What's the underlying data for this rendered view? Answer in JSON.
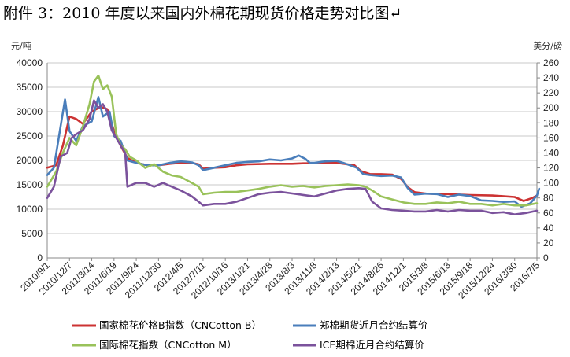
{
  "title": "附件 3：2010 年度以来国内外棉花期现货价格走势对比图↵",
  "chart_data": {
    "type": "line",
    "title": "附件 3：2010 年度以来国内外棉花期现货价格走势对比图",
    "y_left_unit": "元/吨",
    "y_right_unit": "美分/磅",
    "y_left_range": [
      0,
      40000
    ],
    "y_left_ticks": [
      "0",
      "5000",
      "10000",
      "15000",
      "20000",
      "25000",
      "30000",
      "35000",
      "40000"
    ],
    "y_right_range": [
      0,
      260
    ],
    "y_right_ticks": [
      "0",
      "20",
      "40",
      "60",
      "80",
      "100",
      "120",
      "140",
      "160",
      "180",
      "200",
      "220",
      "240",
      "260"
    ],
    "x_ticks": [
      "2010/9/1",
      "2010/12/7",
      "2011/3/14",
      "2011/6/19",
      "2011/9/24",
      "2011/12/30",
      "2012/4/5",
      "2012/7/11",
      "2012/10/16",
      "2013/1/21",
      "2013/4/28",
      "2013/8/3",
      "2013/11/8",
      "2014/2/13",
      "2014/5/21",
      "2014/8/26",
      "2014/12/1",
      "2015/3/8",
      "2015/6/13",
      "2015/9/18",
      "2015/12/24",
      "2016/3/30",
      "2016/7/5"
    ],
    "grid": true,
    "legend_position": "bottom",
    "series": [
      {
        "name": "国家棉花价格B指数（CNCotton B）",
        "axis": "left",
        "color": "#cc3333",
        "points": [
          [
            0,
            18500
          ],
          [
            0.4,
            19000
          ],
          [
            0.7,
            23000
          ],
          [
            1.0,
            29000
          ],
          [
            1.3,
            28500
          ],
          [
            1.6,
            27500
          ],
          [
            2.0,
            30000
          ],
          [
            2.4,
            31000
          ],
          [
            2.7,
            30500
          ],
          [
            3.0,
            26000
          ],
          [
            3.3,
            23000
          ],
          [
            3.6,
            20500
          ],
          [
            4.0,
            19500
          ],
          [
            4.5,
            19000
          ],
          [
            5.0,
            19000
          ],
          [
            5.5,
            19300
          ],
          [
            6.0,
            19500
          ],
          [
            6.5,
            19500
          ],
          [
            6.8,
            19200
          ],
          [
            7.0,
            18300
          ],
          [
            7.5,
            18500
          ],
          [
            8.0,
            18600
          ],
          [
            8.5,
            19000
          ],
          [
            9.0,
            19200
          ],
          [
            10.0,
            19300
          ],
          [
            11.0,
            19300
          ],
          [
            11.5,
            19400
          ],
          [
            12.0,
            19400
          ],
          [
            12.5,
            19500
          ],
          [
            13.0,
            19500
          ],
          [
            13.5,
            19200
          ],
          [
            13.8,
            19000
          ],
          [
            14.1,
            17800
          ],
          [
            14.5,
            17200
          ],
          [
            15.0,
            17200
          ],
          [
            15.5,
            17100
          ],
          [
            15.9,
            16200
          ],
          [
            16.2,
            14500
          ],
          [
            16.5,
            13500
          ],
          [
            17.0,
            13200
          ],
          [
            18.0,
            13100
          ],
          [
            19.0,
            12900
          ],
          [
            20.0,
            12800
          ],
          [
            21.0,
            12500
          ],
          [
            21.4,
            11700
          ],
          [
            21.8,
            12300
          ],
          [
            22.0,
            12800
          ]
        ]
      },
      {
        "name": "郑棉期货近月合约结算价",
        "axis": "left",
        "color": "#4a7ebb",
        "points": [
          [
            0,
            17000
          ],
          [
            0.3,
            18500
          ],
          [
            0.6,
            27000
          ],
          [
            0.8,
            32500
          ],
          [
            1.0,
            26000
          ],
          [
            1.3,
            24000
          ],
          [
            1.6,
            27000
          ],
          [
            2.0,
            28000
          ],
          [
            2.3,
            33000
          ],
          [
            2.5,
            29000
          ],
          [
            2.8,
            30000
          ],
          [
            3.0,
            25000
          ],
          [
            3.3,
            24000
          ],
          [
            3.6,
            20000
          ],
          [
            4.0,
            19500
          ],
          [
            4.5,
            19000
          ],
          [
            5.0,
            19000
          ],
          [
            5.5,
            19500
          ],
          [
            6.0,
            19800
          ],
          [
            6.5,
            19600
          ],
          [
            6.8,
            19000
          ],
          [
            7.0,
            18000
          ],
          [
            7.5,
            18500
          ],
          [
            8.0,
            19000
          ],
          [
            8.5,
            19500
          ],
          [
            9.0,
            19700
          ],
          [
            9.5,
            19800
          ],
          [
            10.0,
            20200
          ],
          [
            10.5,
            20000
          ],
          [
            11.0,
            20400
          ],
          [
            11.3,
            21000
          ],
          [
            11.6,
            20300
          ],
          [
            11.8,
            19500
          ],
          [
            12.0,
            19500
          ],
          [
            12.5,
            19800
          ],
          [
            13.0,
            19900
          ],
          [
            13.3,
            19500
          ],
          [
            13.6,
            19000
          ],
          [
            13.9,
            18500
          ],
          [
            14.2,
            17200
          ],
          [
            14.5,
            17000
          ],
          [
            15.0,
            16800
          ],
          [
            15.5,
            16900
          ],
          [
            15.9,
            16500
          ],
          [
            16.2,
            14300
          ],
          [
            16.5,
            13000
          ],
          [
            17.0,
            13200
          ],
          [
            17.5,
            13100
          ],
          [
            18.0,
            12500
          ],
          [
            18.5,
            13000
          ],
          [
            19.0,
            12700
          ],
          [
            19.5,
            11800
          ],
          [
            20.0,
            11700
          ],
          [
            20.5,
            11500
          ],
          [
            21.0,
            11600
          ],
          [
            21.3,
            10500
          ],
          [
            21.7,
            11200
          ],
          [
            22.0,
            12800
          ],
          [
            22.1,
            14200
          ]
        ]
      },
      {
        "name": "国际棉花指数（CNCotton M）",
        "axis": "right",
        "color": "#99c25a",
        "points": [
          [
            0,
            95
          ],
          [
            0.4,
            115
          ],
          [
            0.7,
            140
          ],
          [
            1.0,
            160
          ],
          [
            1.3,
            150
          ],
          [
            1.6,
            175
          ],
          [
            1.9,
            205
          ],
          [
            2.1,
            235
          ],
          [
            2.3,
            243
          ],
          [
            2.5,
            225
          ],
          [
            2.7,
            230
          ],
          [
            2.9,
            215
          ],
          [
            3.1,
            165
          ],
          [
            3.3,
            150
          ],
          [
            3.5,
            145
          ],
          [
            3.7,
            135
          ],
          [
            4.0,
            130
          ],
          [
            4.4,
            120
          ],
          [
            4.8,
            125
          ],
          [
            5.2,
            115
          ],
          [
            5.6,
            110
          ],
          [
            6.0,
            108
          ],
          [
            6.5,
            100
          ],
          [
            6.8,
            95
          ],
          [
            7.0,
            85
          ],
          [
            7.5,
            87
          ],
          [
            8.0,
            88
          ],
          [
            8.5,
            88
          ],
          [
            9.0,
            90
          ],
          [
            9.5,
            92
          ],
          [
            10.0,
            95
          ],
          [
            10.5,
            97
          ],
          [
            11.0,
            95
          ],
          [
            11.5,
            96
          ],
          [
            12.0,
            94
          ],
          [
            12.5,
            96
          ],
          [
            13.0,
            97
          ],
          [
            13.5,
            98
          ],
          [
            14.0,
            97
          ],
          [
            14.3,
            95
          ],
          [
            14.6,
            90
          ],
          [
            15.0,
            82
          ],
          [
            15.5,
            78
          ],
          [
            16.0,
            74
          ],
          [
            16.5,
            72
          ],
          [
            17.0,
            72
          ],
          [
            17.5,
            74
          ],
          [
            18.0,
            73
          ],
          [
            18.5,
            75
          ],
          [
            19.0,
            72
          ],
          [
            19.5,
            72
          ],
          [
            20.0,
            70
          ],
          [
            20.5,
            72
          ],
          [
            21.0,
            70
          ],
          [
            21.5,
            70
          ],
          [
            22.0,
            73
          ]
        ]
      },
      {
        "name": "ICE期棉近月合约结算价",
        "axis": "right",
        "color": "#7b529c",
        "points": [
          [
            0,
            80
          ],
          [
            0.3,
            95
          ],
          [
            0.6,
            135
          ],
          [
            0.9,
            140
          ],
          [
            1.1,
            160
          ],
          [
            1.3,
            165
          ],
          [
            1.6,
            170
          ],
          [
            1.9,
            185
          ],
          [
            2.1,
            210
          ],
          [
            2.3,
            200
          ],
          [
            2.5,
            205
          ],
          [
            2.7,
            195
          ],
          [
            2.9,
            170
          ],
          [
            3.1,
            160
          ],
          [
            3.3,
            150
          ],
          [
            3.5,
            140
          ],
          [
            3.6,
            95
          ],
          [
            4.0,
            100
          ],
          [
            4.4,
            100
          ],
          [
            4.8,
            95
          ],
          [
            5.2,
            100
          ],
          [
            5.6,
            95
          ],
          [
            6.0,
            90
          ],
          [
            6.5,
            82
          ],
          [
            6.8,
            75
          ],
          [
            7.0,
            70
          ],
          [
            7.5,
            72
          ],
          [
            8.0,
            72
          ],
          [
            8.5,
            75
          ],
          [
            9.0,
            80
          ],
          [
            9.5,
            85
          ],
          [
            10.0,
            87
          ],
          [
            10.5,
            88
          ],
          [
            11.0,
            86
          ],
          [
            11.5,
            84
          ],
          [
            12.0,
            82
          ],
          [
            12.5,
            86
          ],
          [
            13.0,
            90
          ],
          [
            13.5,
            92
          ],
          [
            14.0,
            93
          ],
          [
            14.3,
            92
          ],
          [
            14.6,
            75
          ],
          [
            15.0,
            66
          ],
          [
            15.5,
            64
          ],
          [
            16.0,
            63
          ],
          [
            16.5,
            62
          ],
          [
            17.0,
            62
          ],
          [
            17.5,
            64
          ],
          [
            18.0,
            62
          ],
          [
            18.5,
            64
          ],
          [
            19.0,
            63
          ],
          [
            19.5,
            63
          ],
          [
            20.0,
            60
          ],
          [
            20.5,
            61
          ],
          [
            21.0,
            58
          ],
          [
            21.5,
            60
          ],
          [
            22.0,
            63
          ]
        ]
      }
    ]
  }
}
